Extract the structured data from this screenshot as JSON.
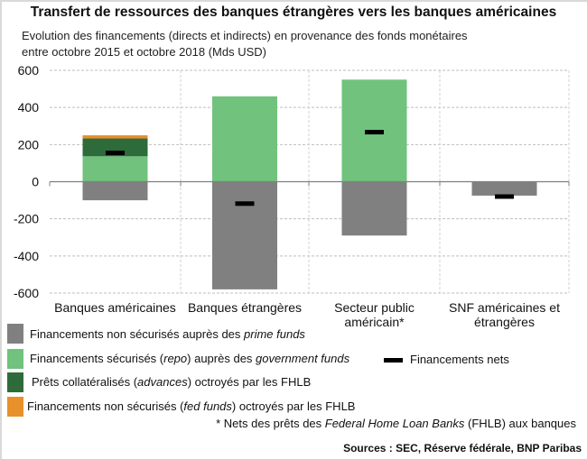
{
  "chart_data": {
    "type": "bar",
    "stacked": true,
    "title": "Transfert de ressources des banques étrangères vers les banques américaines",
    "subtitle_line1": "Evolution des financements (directs et indirects) en provenance des fonds monétaires",
    "subtitle_line2": "entre octobre 2015  et octobre 2018  (Mds USD)",
    "categories": [
      "Banques américaines",
      "Banques étrangères",
      "Secteur public américain*",
      "SNF américaines et étrangères"
    ],
    "category_lines": [
      [
        "Banques américaines"
      ],
      [
        "Banques étrangères"
      ],
      [
        "Secteur public",
        "américain*"
      ],
      [
        "SNF américaines et",
        "étrangères"
      ]
    ],
    "ylim": [
      -600,
      600
    ],
    "yticks": [
      600,
      400,
      200,
      0,
      -200,
      -400,
      -600
    ],
    "ytick_labels": [
      "600",
      "400",
      "200",
      "0",
      "-200",
      "-400",
      "-600"
    ],
    "grid": true,
    "series": [
      {
        "name": "Financements non sécurisés auprès des prime funds",
        "color": "#808080",
        "values": [
          -100,
          -580,
          -290,
          -75
        ]
      },
      {
        "name": "Financements sécurisés (repo) auprès des government funds",
        "color": "#70c27c",
        "values": [
          137,
          460,
          550,
          0
        ]
      },
      {
        "name": "Prêts collatéralisés (advances) octroyés par les FHLB",
        "color": "#2e6b3a",
        "values": [
          96,
          0,
          0,
          0
        ]
      },
      {
        "name": "Financements non sécurisés (fed funds) octroyés par les FHLB",
        "color": "#e8902a",
        "values": [
          17,
          0,
          0,
          0
        ]
      }
    ],
    "net": {
      "name": "Financements nets",
      "color": "#000000",
      "values": [
        155,
        -118,
        267,
        -80
      ]
    }
  },
  "legend": {
    "item1": {
      "pre": "Financements non sécurisés auprès des ",
      "em": "prime funds",
      "post": ""
    },
    "item2": {
      "pre": "Financements sécurisés (",
      "em": "repo",
      "mid": ") auprès des ",
      "em2": "government funds"
    },
    "item3": {
      "pre": "Prêts collatéralisés (",
      "em": "advances",
      "post": ") octroyés par les FHLB"
    },
    "item4": {
      "pre": "Financements non sécurisés (",
      "em": "fed funds",
      "post": ") octroyés par les FHLB"
    },
    "net": "Financements nets"
  },
  "footnote": {
    "pre": "* Nets des prêts des ",
    "em": "Federal Home Loan Banks",
    "post": " (FHLB) aux banques"
  },
  "sources": "Sources : SEC, Réserve fédérale, BNP Paribas"
}
